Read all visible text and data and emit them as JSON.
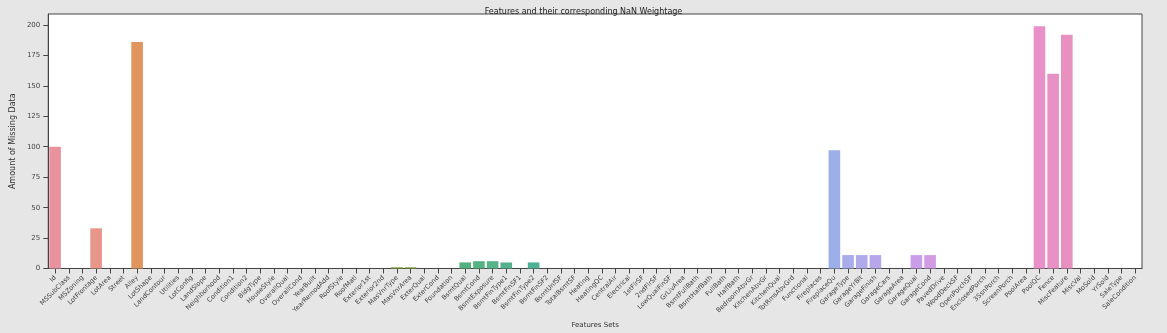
{
  "chart_data": {
    "type": "bar",
    "title": "Features and their corresponding NaN Weightage",
    "xlabel": "Features Sets",
    "ylabel": "Amount of Missing Data",
    "categories": [
      "Id",
      "MSSubClass",
      "MSZoning",
      "LotFrontage",
      "LotArea",
      "Street",
      "Alley",
      "LotShape",
      "LandContour",
      "Utilities",
      "LotConfig",
      "LandSlope",
      "Neighborhood",
      "Condition1",
      "Condition2",
      "BldgType",
      "HouseStyle",
      "OverallQual",
      "OverallCond",
      "YearBuilt",
      "YearRemodAdd",
      "RoofStyle",
      "RoofMatl",
      "Exterior1st",
      "Exterior2nd",
      "MasVnrType",
      "MasVnrArea",
      "ExterQual",
      "ExterCond",
      "Foundation",
      "BsmtQual",
      "BsmtCond",
      "BsmtExposure",
      "BsmtFinType1",
      "BsmtFinSF1",
      "BsmtFinType2",
      "BsmtFinSF2",
      "BsmtUnfSF",
      "TotalBsmtSF",
      "Heating",
      "HeatingQC",
      "CentralAir",
      "Electrical",
      "1stFlrSF",
      "2ndFlrSF",
      "LowQualFinSF",
      "GrLivArea",
      "BsmtFullBath",
      "BsmtHalfBath",
      "FullBath",
      "HalfBath",
      "BedroomAbvGr",
      "KitchenAbvGr",
      "KitchenQual",
      "TotRmsAbvGrd",
      "Functional",
      "Fireplaces",
      "FireplaceQu",
      "GarageType",
      "GarageYrBlt",
      "GarageFinish",
      "GarageCars",
      "GarageArea",
      "GarageQual",
      "GarageCond",
      "PavedDrive",
      "WoodDeckSF",
      "OpenPorchSF",
      "EnclosedPorch",
      "3SsnPorch",
      "ScreenPorch",
      "PoolArea",
      "PoolQC",
      "Fence",
      "MiscFeature",
      "MiscVal",
      "MoSold",
      "YrSold",
      "SaleType",
      "SaleCondition"
    ],
    "values": [
      100,
      0,
      0,
      33,
      0,
      0,
      186,
      0,
      0,
      0,
      0,
      0,
      0,
      0,
      0,
      0,
      0,
      0,
      0,
      0,
      0,
      0,
      0,
      0,
      0,
      1,
      1,
      0,
      0,
      0,
      5,
      6,
      6,
      5,
      0,
      5,
      0,
      0,
      0,
      0,
      0,
      0,
      0,
      0,
      0,
      0,
      0,
      0,
      0,
      0,
      0,
      0,
      0,
      0,
      0,
      0,
      0,
      97,
      11,
      11,
      11,
      0,
      0,
      11,
      11,
      0,
      0,
      0,
      0,
      0,
      0,
      0,
      199,
      160,
      192,
      0,
      0,
      0,
      0,
      0
    ],
    "colors": [
      "#e8929e",
      "#e8929e",
      "#e8929e",
      "#e8968a",
      "#e8968a",
      "#e8968a",
      "#e0955f",
      "#e0955f",
      "#e0955f",
      "#e0955f",
      "#e0955f",
      "#c0a050",
      "#c0a050",
      "#c0a050",
      "#c0a050",
      "#c0a050",
      "#c0a050",
      "#c0a050",
      "#c0a050",
      "#c0a050",
      "#c0a050",
      "#8fae48",
      "#8fae48",
      "#8fae48",
      "#8fae48",
      "#7fa83e",
      "#7fa83e",
      "#8fae48",
      "#54b07f",
      "#54b07f",
      "#54b07f",
      "#55b283",
      "#56b288",
      "#55b090",
      "#54b07f",
      "#4fb098",
      "#4fac9e",
      "#4fac9e",
      "#4fac9e",
      "#4fac9e",
      "#4fac9e",
      "#4fac9e",
      "#4fac9e",
      "#4fac9e",
      "#4fac9e",
      "#4fac9e",
      "#4fac9e",
      "#4fac9e",
      "#4fac9e",
      "#4fac9e",
      "#4fac9e",
      "#6aa8c8",
      "#6aa8c8",
      "#6aa8c8",
      "#6aa8c8",
      "#6aa8c8",
      "#6aa8c8",
      "#9dafe8",
      "#a8acea",
      "#b0aaea",
      "#b8a6ea",
      "#c69de8",
      "#c69de8",
      "#c99de8",
      "#d29be2",
      "#dd92d8",
      "#dd92d8",
      "#dd92d8",
      "#dd92d8",
      "#dd92d8",
      "#dd92d8",
      "#dd92d8",
      "#e791c8",
      "#e891c4",
      "#e890c0",
      "#e893b2",
      "#e893b2",
      "#e893b2",
      "#e893b2",
      "#e893b2"
    ],
    "ylim": [
      0,
      209
    ],
    "yticks": [
      0,
      25,
      50,
      75,
      100,
      125,
      150,
      175,
      200
    ],
    "grid": false
  }
}
